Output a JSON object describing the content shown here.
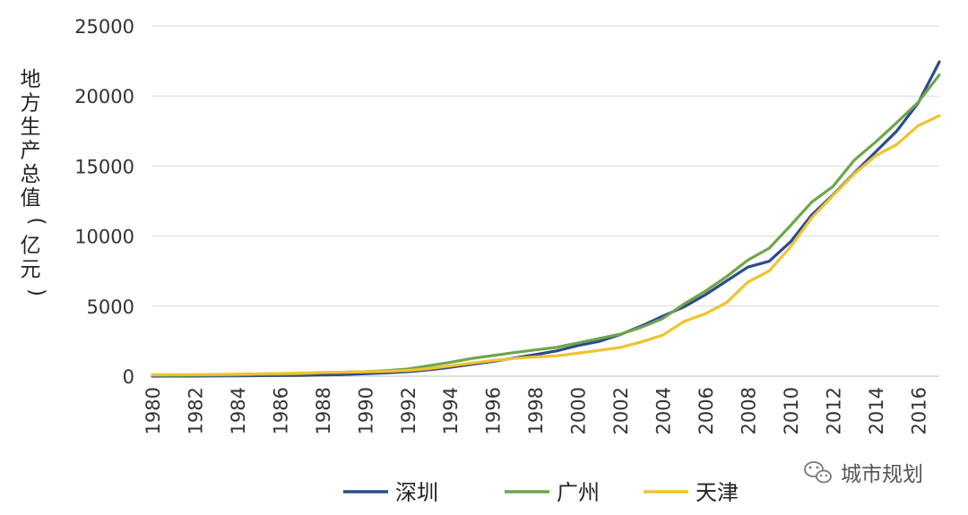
{
  "chart_data": {
    "type": "line",
    "ylabel": "地方生产总值(亿元)",
    "ylim": [
      0,
      25000
    ],
    "yticks": [
      0,
      5000,
      10000,
      15000,
      20000,
      25000
    ],
    "xticks": [
      1980,
      1982,
      1984,
      1986,
      1988,
      1990,
      1992,
      1994,
      1996,
      1998,
      2000,
      2002,
      2004,
      2006,
      2008,
      2010,
      2012,
      2014,
      2016
    ],
    "grid": true,
    "legend_position": "bottom",
    "x": [
      1980,
      1981,
      1982,
      1983,
      1984,
      1985,
      1986,
      1987,
      1988,
      1989,
      1990,
      1991,
      1992,
      1993,
      1994,
      1995,
      1996,
      1997,
      1998,
      1999,
      2000,
      2001,
      2002,
      2003,
      2004,
      2005,
      2006,
      2007,
      2008,
      2009,
      2010,
      2011,
      2012,
      2013,
      2014,
      2015,
      2016,
      2017
    ],
    "series": [
      {
        "name": "深圳",
        "color": "#2d4b8e",
        "values": [
          3,
          5,
          8,
          13,
          23,
          39,
          42,
          56,
          87,
          116,
          172,
          237,
          317,
          453,
          635,
          842,
          1048,
          1297,
          1535,
          1804,
          2187,
          2482,
          2970,
          3586,
          4282,
          4951,
          5814,
          6802,
          7787,
          8201,
          9582,
          11506,
          12950,
          14500,
          16002,
          17503,
          19493,
          22438
        ]
      },
      {
        "name": "广州",
        "color": "#6fa64a",
        "values": [
          58,
          62,
          70,
          77,
          90,
          125,
          140,
          175,
          241,
          288,
          320,
          387,
          510,
          745,
          985,
          1259,
          1468,
          1679,
          1873,
          2056,
          2375,
          2686,
          3001,
          3497,
          4116,
          5154,
          6068,
          7109,
          8287,
          9138,
          10748,
          12423,
          13551,
          15420,
          16707,
          18100,
          19547,
          21503
        ]
      },
      {
        "name": "天津",
        "color": "#f2c22e",
        "values": [
          103,
          107,
          115,
          123,
          148,
          175,
          194,
          220,
          260,
          283,
          311,
          343,
          411,
          538,
          733,
          931,
          1121,
          1265,
          1374,
          1450,
          1639,
          1840,
          2051,
          2448,
          2931,
          3906,
          4463,
          5253,
          6719,
          7522,
          9224,
          11307,
          12894,
          14442,
          15727,
          16538,
          17885,
          18595
        ]
      }
    ]
  },
  "watermark": {
    "text": "城市规划",
    "icon": "wechat-icon"
  }
}
